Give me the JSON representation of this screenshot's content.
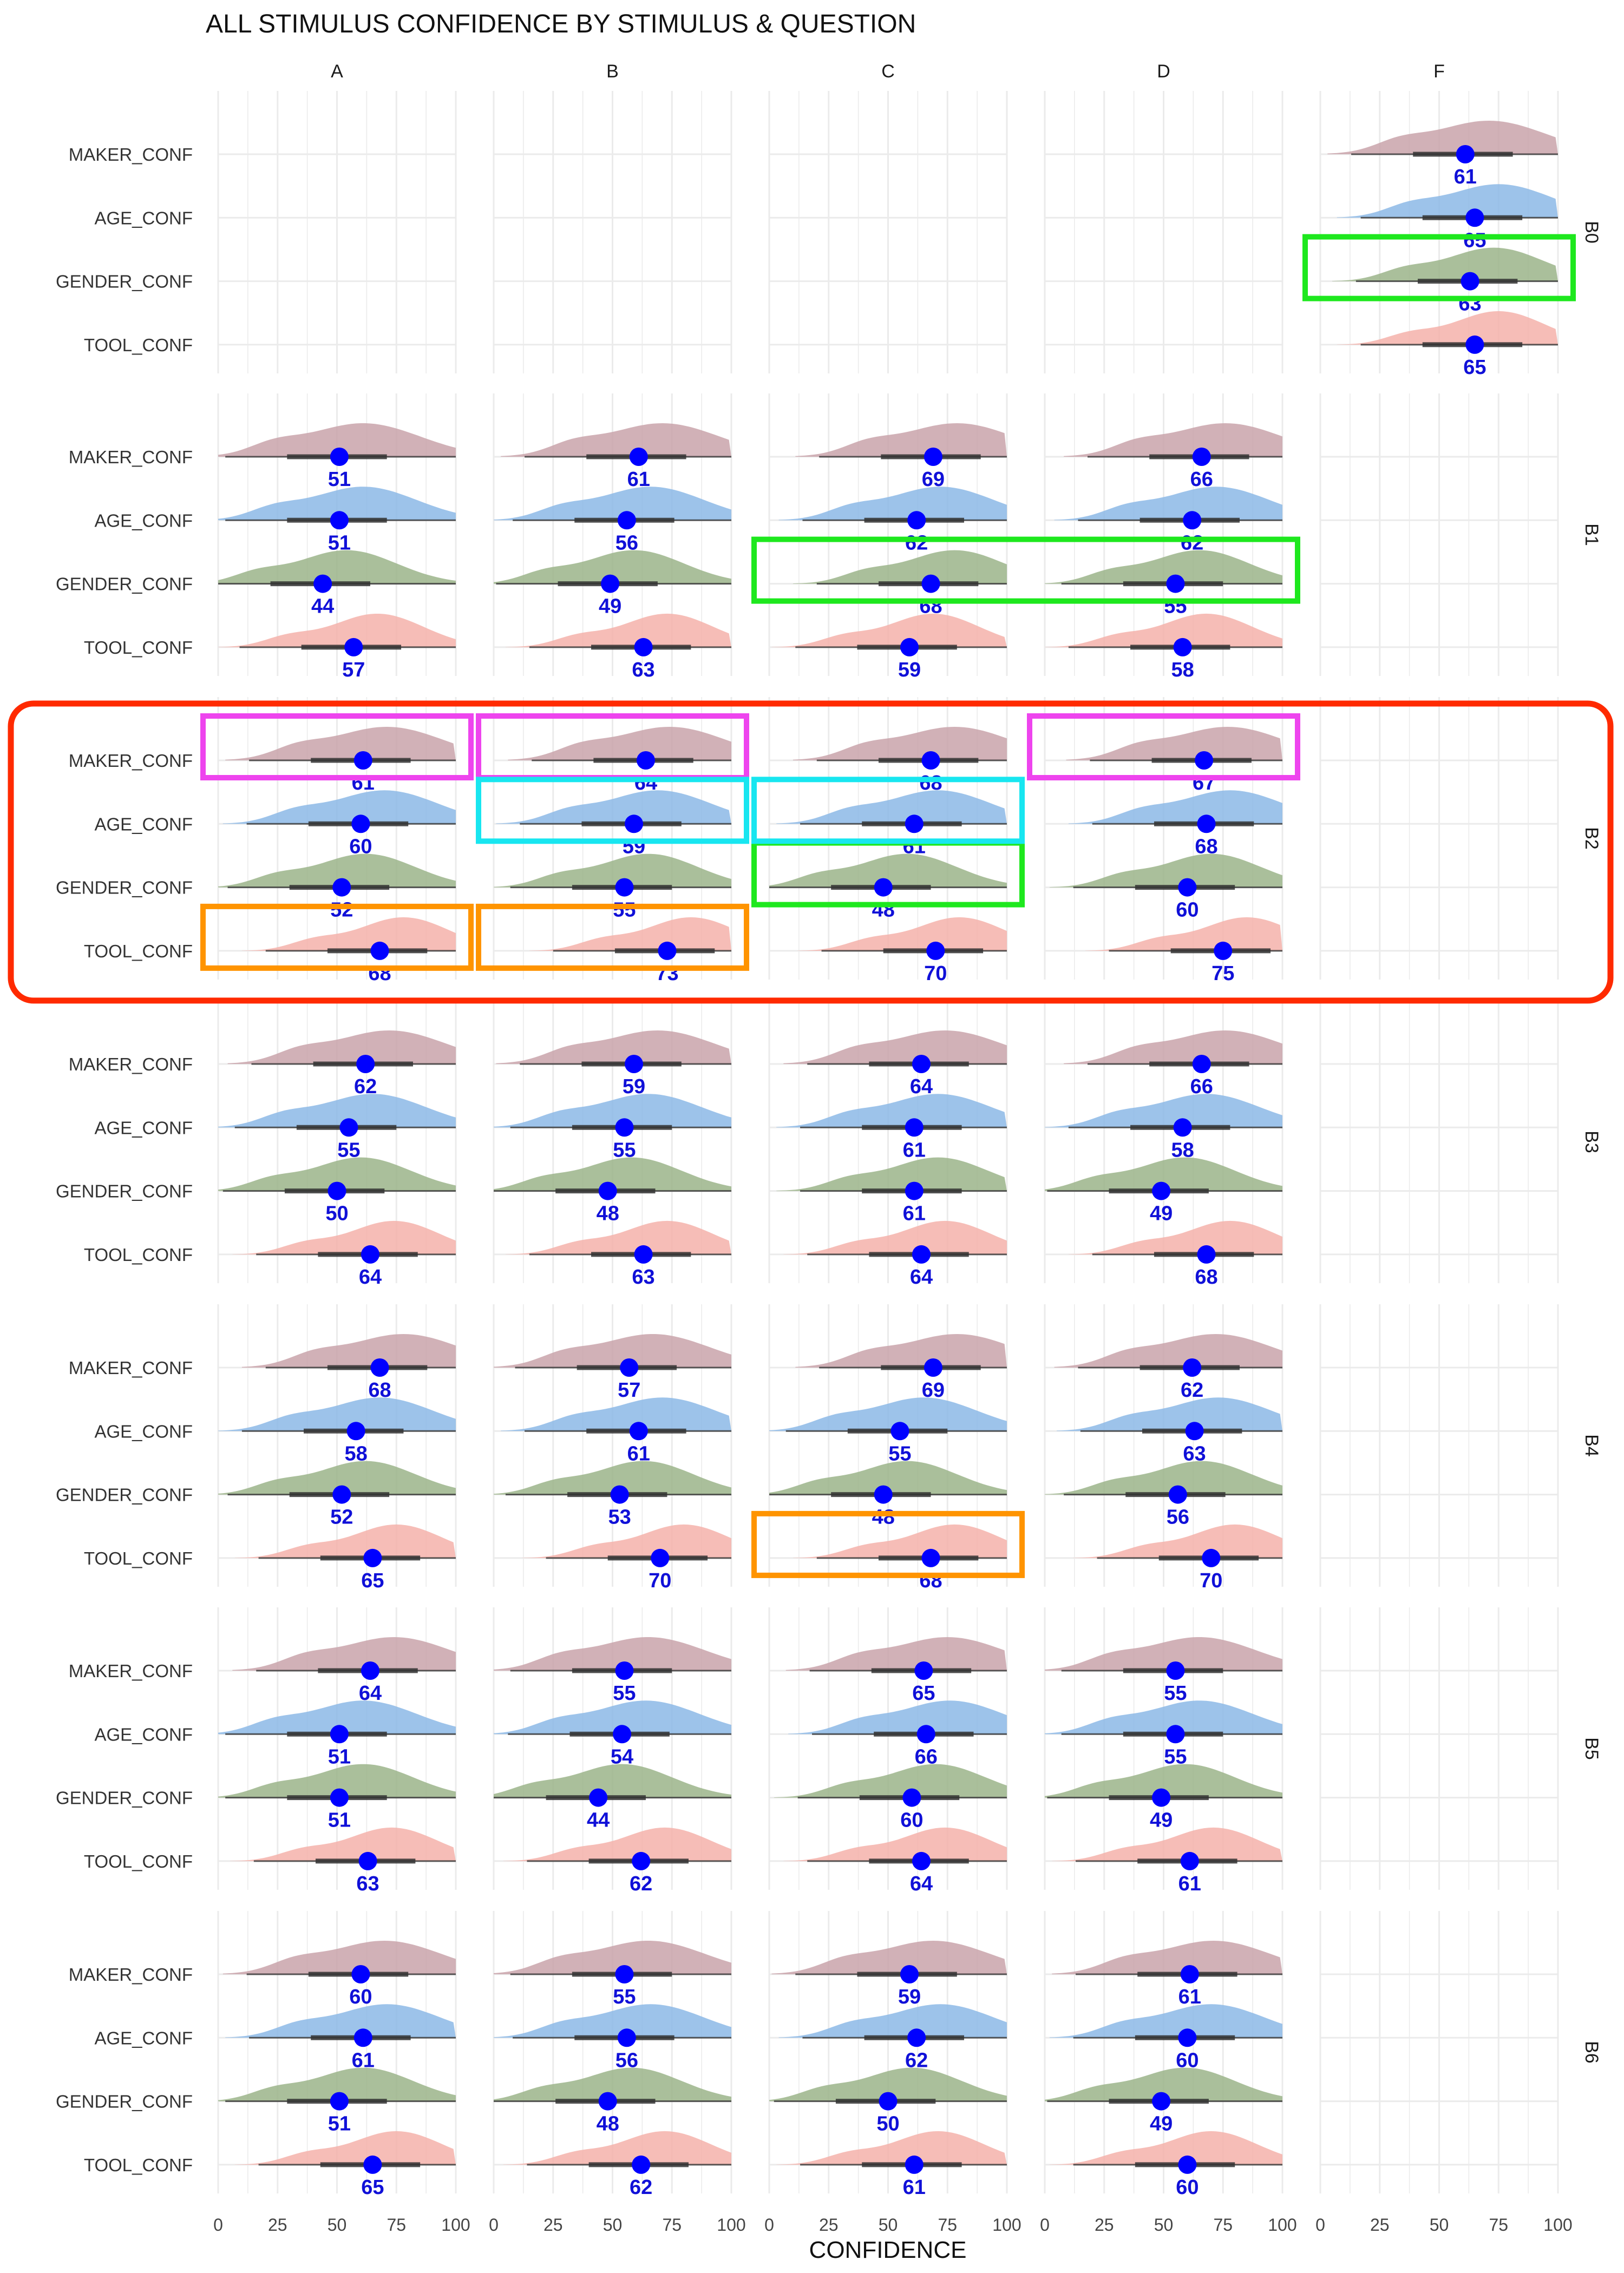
{
  "chart_data": {
    "type": "ridgeline",
    "title": "ALL STIMULUS CONFIDENCE BY STIMULUS & QUESTION",
    "xlabel": "CONFIDENCE",
    "ylabel": "",
    "xlim": [
      0,
      100
    ],
    "xticks": [
      0,
      25,
      50,
      75,
      100
    ],
    "columns": [
      "A",
      "B",
      "C",
      "D",
      "F"
    ],
    "rows": [
      "B0",
      "B1",
      "B2",
      "B3",
      "B4",
      "B5",
      "B6"
    ],
    "questions": [
      "MAKER_CONF",
      "AGE_CONF",
      "GENDER_CONF",
      "TOOL_CONF"
    ],
    "colors": {
      "MAKER_CONF": "#c9a3aa",
      "AGE_CONF": "#8cb8e6",
      "GENDER_CONF": "#9bb48a",
      "TOOL_CONF": "#f4b2aa",
      "point": "#0000ff",
      "value_label": "#1010d8",
      "range_line": "#333333",
      "grid": "#ebebeb",
      "highlight_red": "#ff2a00",
      "highlight_green": "#1ee81e",
      "highlight_magenta": "#ee44ee",
      "highlight_cyan": "#18e6f0",
      "highlight_orange": "#ff9400"
    },
    "grid": true,
    "legend": "none",
    "means": {
      "B0": {
        "F": [
          61,
          65,
          63,
          65
        ]
      },
      "B1": {
        "A": [
          51,
          51,
          44,
          57
        ],
        "B": [
          61,
          56,
          49,
          63
        ],
        "C": [
          69,
          62,
          68,
          59
        ],
        "D": [
          66,
          62,
          55,
          58
        ]
      },
      "B2": {
        "A": [
          61,
          60,
          52,
          68
        ],
        "B": [
          64,
          59,
          55,
          73
        ],
        "C": [
          68,
          61,
          48,
          70
        ],
        "D": [
          67,
          68,
          60,
          75
        ]
      },
      "B3": {
        "A": [
          62,
          55,
          50,
          64
        ],
        "B": [
          59,
          55,
          48,
          63
        ],
        "C": [
          64,
          61,
          61,
          64
        ],
        "D": [
          66,
          58,
          49,
          68
        ]
      },
      "B4": {
        "A": [
          68,
          58,
          52,
          65
        ],
        "B": [
          57,
          61,
          53,
          70
        ],
        "C": [
          69,
          55,
          48,
          68
        ],
        "D": [
          62,
          63,
          56,
          70
        ]
      },
      "B5": {
        "A": [
          64,
          51,
          51,
          63
        ],
        "B": [
          55,
          54,
          44,
          62
        ],
        "C": [
          65,
          66,
          60,
          64
        ],
        "D": [
          55,
          55,
          49,
          61
        ]
      },
      "B6": {
        "A": [
          60,
          61,
          51,
          65
        ],
        "B": [
          55,
          56,
          48,
          62
        ],
        "C": [
          59,
          62,
          50,
          61
        ],
        "D": [
          61,
          60,
          49,
          60
        ]
      }
    },
    "highlights": [
      {
        "color": "red",
        "row": "B2",
        "question": "MAKER_CONF",
        "col_from": "A",
        "row_to": "B2",
        "question_to": "TOOL_CONF",
        "col_to": "F"
      },
      {
        "color": "green",
        "row": "B0",
        "question": "GENDER_CONF",
        "col_from": "F",
        "col_to": "F"
      },
      {
        "color": "green",
        "row": "B1",
        "question": "GENDER_CONF",
        "col_from": "C",
        "col_to": "D"
      },
      {
        "color": "green",
        "row": "B2",
        "question": "GENDER_CONF",
        "col_from": "C",
        "col_to": "C"
      },
      {
        "color": "magenta",
        "row": "B2",
        "question": "MAKER_CONF",
        "col_from": "A",
        "col_to": "A"
      },
      {
        "color": "magenta",
        "row": "B2",
        "question": "MAKER_CONF",
        "col_from": "B",
        "col_to": "B"
      },
      {
        "color": "magenta",
        "row": "B2",
        "question": "MAKER_CONF",
        "col_from": "D",
        "col_to": "D"
      },
      {
        "color": "cyan",
        "row": "B2",
        "question": "AGE_CONF",
        "col_from": "B",
        "col_to": "B"
      },
      {
        "color": "cyan",
        "row": "B2",
        "question": "AGE_CONF",
        "col_from": "C",
        "col_to": "C"
      },
      {
        "color": "orange",
        "row": "B2",
        "question": "TOOL_CONF",
        "col_from": "A",
        "col_to": "A"
      },
      {
        "color": "orange",
        "row": "B2",
        "question": "TOOL_CONF",
        "col_from": "B",
        "col_to": "B"
      },
      {
        "color": "orange",
        "row": "B4",
        "question": "TOOL_CONF",
        "col_from": "C",
        "col_to": "C"
      }
    ]
  }
}
